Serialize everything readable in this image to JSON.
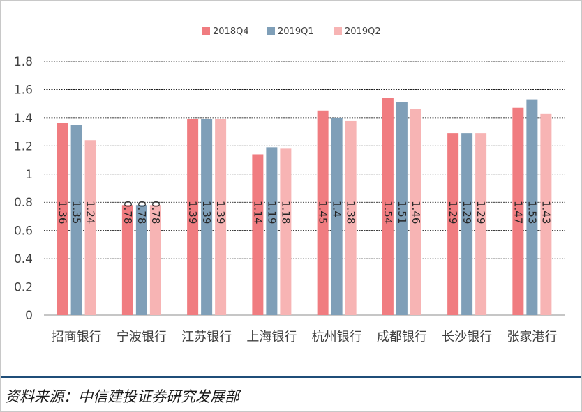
{
  "chart_data": {
    "type": "bar",
    "categories": [
      "招商银行",
      "宁波银行",
      "江苏银行",
      "上海银行",
      "杭州银行",
      "成都银行",
      "长沙银行",
      "张家港行"
    ],
    "series": [
      {
        "name": "2018Q4",
        "color": "#f07c80",
        "values": [
          1.36,
          0.78,
          1.39,
          1.14,
          1.45,
          1.54,
          1.29,
          1.47
        ]
      },
      {
        "name": "2019Q1",
        "color": "#7f9fb8",
        "values": [
          1.35,
          0.78,
          1.39,
          1.19,
          1.4,
          1.51,
          1.29,
          1.53
        ]
      },
      {
        "name": "2019Q2",
        "color": "#f7b4b4",
        "values": [
          1.24,
          0.78,
          1.39,
          1.18,
          1.38,
          1.46,
          1.29,
          1.43
        ]
      }
    ],
    "ylim": [
      0,
      1.8
    ],
    "yticks": [
      "0",
      "0.2",
      "0.4",
      "0.6",
      "0.8",
      "1",
      "1.2",
      "1.4",
      "1.6",
      "1.8"
    ],
    "grid": true,
    "legend_position": "top-center",
    "data_labels": "rotated-inside-bars"
  },
  "source": "资料来源：中信建投证券研究发展部"
}
